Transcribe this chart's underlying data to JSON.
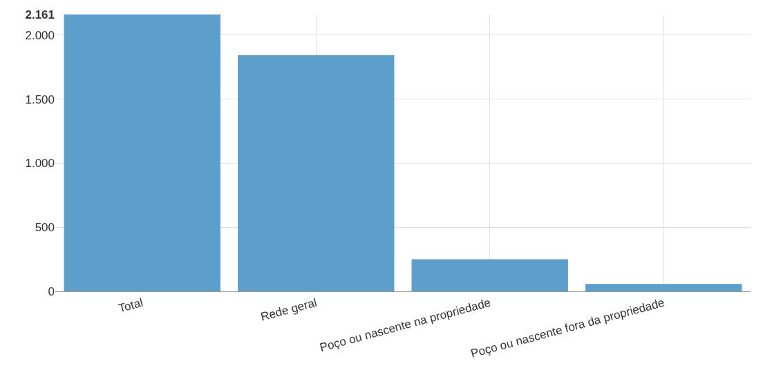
{
  "chart_data": {
    "type": "bar",
    "categories": [
      "Total",
      "Rede geral",
      "Poço ou nascente na propriedade",
      "Poço ou nascente fora da propriedade"
    ],
    "values": [
      2161,
      1843,
      250,
      58
    ],
    "color": "#5499c7",
    "ylim": [
      0,
      2161
    ],
    "yticks": [
      0,
      500,
      {
        "value": 1000,
        "label": "1.000"
      },
      {
        "value": 1500,
        "label": "1.500"
      },
      {
        "value": 2000,
        "label": "2.000"
      },
      {
        "value": 2161,
        "label": "2.161"
      }
    ],
    "grid": true
  }
}
